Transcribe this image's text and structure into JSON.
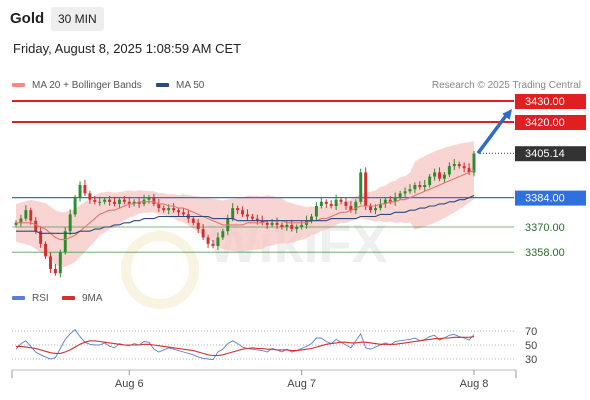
{
  "header": {
    "title": "Gold",
    "timeframe": "30 MIN",
    "datetime": "Friday, August 8, 2025 1:08:59 AM CET"
  },
  "legend": {
    "items": [
      {
        "label": "MA 20 + Bollinger Bands",
        "color": "#f28b82"
      },
      {
        "label": "MA 50",
        "color": "#2c4a7a"
      }
    ],
    "source": "Research © 2025 Trading Central"
  },
  "rsi_legend": {
    "items": [
      {
        "label": "RSI",
        "color": "#5b7fd6"
      },
      {
        "label": "9MA",
        "color": "#d32f2f"
      }
    ]
  },
  "watermark": "WikiFX",
  "chart_data": [
    {
      "type": "candlestick",
      "title": "",
      "ylim": [
        3340,
        3440
      ],
      "x_ticks": [
        {
          "label": "Aug 6",
          "index": 23
        },
        {
          "label": "Aug 7",
          "index": 58
        },
        {
          "label": "Aug 8",
          "index": 93
        }
      ],
      "levels": [
        {
          "value": 3430.0,
          "label": "3430.00",
          "color": "#e02020",
          "style": "resistance"
        },
        {
          "value": 3420.0,
          "label": "3420.00",
          "color": "#e02020",
          "style": "resistance"
        },
        {
          "value": 3405.14,
          "label": "3405.14",
          "color": "#333333",
          "style": "last"
        },
        {
          "value": 3384.0,
          "label": "3384.00",
          "color": "#2f6fe0",
          "style": "pivot"
        },
        {
          "value": 3370.0,
          "label": "3370.00",
          "color": "#2e8b2e",
          "style": "support"
        },
        {
          "value": 3358.0,
          "label": "3358.00",
          "color": "#2e8b2e",
          "style": "support"
        }
      ],
      "close": [
        3372,
        3374,
        3378,
        3373,
        3368,
        3362,
        3356,
        3350,
        3348,
        3358,
        3368,
        3376,
        3384,
        3390,
        3386,
        3383,
        3382,
        3382,
        3383,
        3382,
        3381,
        3383,
        3382,
        3381,
        3382,
        3381,
        3383,
        3384,
        3381,
        3379,
        3378,
        3379,
        3378,
        3377,
        3376,
        3374,
        3372,
        3369,
        3365,
        3362,
        3361,
        3365,
        3368,
        3374,
        3379,
        3378,
        3376,
        3375,
        3374,
        3373,
        3372,
        3371,
        3372,
        3371,
        3370,
        3371,
        3369,
        3370,
        3371,
        3373,
        3375,
        3380,
        3382,
        3381,
        3380,
        3383,
        3382,
        3380,
        3378,
        3382,
        3396,
        3380,
        3378,
        3379,
        3381,
        3383,
        3382,
        3384,
        3386,
        3387,
        3388,
        3390,
        3389,
        3390,
        3394,
        3396,
        3393,
        3395,
        3399,
        3400,
        3399,
        3398,
        3396,
        3405
      ],
      "indicators": {
        "ma20": [
          3372,
          3372,
          3372,
          3372,
          3371,
          3370,
          3369,
          3367,
          3365,
          3364,
          3364,
          3365,
          3366,
          3368,
          3370,
          3372,
          3374,
          3376,
          3377,
          3378,
          3378,
          3379,
          3380,
          3381,
          3381,
          3382,
          3382,
          3382,
          3382,
          3381,
          3381,
          3380,
          3380,
          3379,
          3379,
          3378,
          3377,
          3376,
          3375,
          3374,
          3373,
          3372,
          3371,
          3371,
          3371,
          3371,
          3371,
          3372,
          3372,
          3372,
          3372,
          3373,
          3373,
          3373,
          3373,
          3372,
          3372,
          3372,
          3372,
          3372,
          3373,
          3373,
          3374,
          3374,
          3375,
          3376,
          3377,
          3377,
          3378,
          3379,
          3380,
          3380,
          3380,
          3380,
          3381,
          3381,
          3382,
          3382,
          3383,
          3383,
          3384,
          3385,
          3386,
          3387,
          3388,
          3389,
          3390,
          3391,
          3392,
          3393,
          3394,
          3395,
          3396,
          3397
        ],
        "ma50": [
          3368,
          3368,
          3368,
          3368,
          3368,
          3367,
          3367,
          3367,
          3367,
          3367,
          3367,
          3367,
          3367,
          3368,
          3368,
          3368,
          3369,
          3369,
          3370,
          3370,
          3371,
          3371,
          3372,
          3372,
          3373,
          3373,
          3374,
          3374,
          3374,
          3375,
          3375,
          3375,
          3375,
          3375,
          3375,
          3375,
          3375,
          3375,
          3375,
          3375,
          3374,
          3374,
          3374,
          3374,
          3374,
          3373,
          3373,
          3373,
          3373,
          3373,
          3373,
          3373,
          3373,
          3373,
          3373,
          3373,
          3373,
          3373,
          3373,
          3373,
          3373,
          3373,
          3373,
          3373,
          3374,
          3374,
          3374,
          3374,
          3374,
          3374,
          3375,
          3375,
          3375,
          3375,
          3376,
          3376,
          3376,
          3377,
          3377,
          3377,
          3378,
          3378,
          3379,
          3379,
          3380,
          3380,
          3381,
          3381,
          3382,
          3382,
          3383,
          3383,
          3384,
          3385
        ]
      },
      "forecast": {
        "from": 3405.14,
        "to": 3430.0
      }
    },
    {
      "type": "line",
      "title": "",
      "ylim": [
        20,
        80
      ],
      "y_ticks": [
        70,
        50,
        30
      ],
      "series": [
        {
          "name": "RSI",
          "color": "#5b7fd6",
          "values": [
            44,
            52,
            56,
            48,
            40,
            36,
            33,
            30,
            32,
            45,
            58,
            66,
            72,
            62,
            54,
            51,
            50,
            50,
            53,
            48,
            46,
            52,
            50,
            49,
            52,
            50,
            55,
            54,
            44,
            40,
            43,
            46,
            44,
            42,
            40,
            38,
            36,
            33,
            31,
            30,
            29,
            40,
            44,
            52,
            56,
            52,
            47,
            45,
            44,
            43,
            42,
            40,
            45,
            43,
            40,
            44,
            40,
            42,
            45,
            48,
            52,
            60,
            60,
            55,
            52,
            58,
            54,
            50,
            46,
            56,
            66,
            46,
            44,
            47,
            50,
            53,
            50,
            55,
            56,
            57,
            58,
            60,
            56,
            58,
            62,
            64,
            57,
            60,
            64,
            65,
            62,
            60,
            57,
            65
          ]
        },
        {
          "name": "9MA",
          "color": "#d32f2f",
          "values": [
            48,
            48,
            47,
            46,
            45,
            43,
            41,
            39,
            38,
            38,
            40,
            43,
            47,
            51,
            54,
            56,
            56,
            55,
            54,
            53,
            52,
            51,
            50,
            50,
            50,
            50,
            51,
            51,
            50,
            49,
            48,
            47,
            46,
            45,
            44,
            43,
            42,
            40,
            38,
            36,
            35,
            35,
            36,
            38,
            40,
            42,
            44,
            45,
            46,
            45,
            45,
            44,
            44,
            43,
            43,
            43,
            42,
            42,
            43,
            44,
            45,
            47,
            49,
            51,
            52,
            53,
            54,
            54,
            53,
            53,
            54,
            54,
            53,
            52,
            51,
            51,
            51,
            51,
            52,
            53,
            54,
            55,
            56,
            57,
            58,
            59,
            59,
            60,
            60,
            61,
            61,
            61,
            61,
            62
          ]
        }
      ]
    }
  ]
}
